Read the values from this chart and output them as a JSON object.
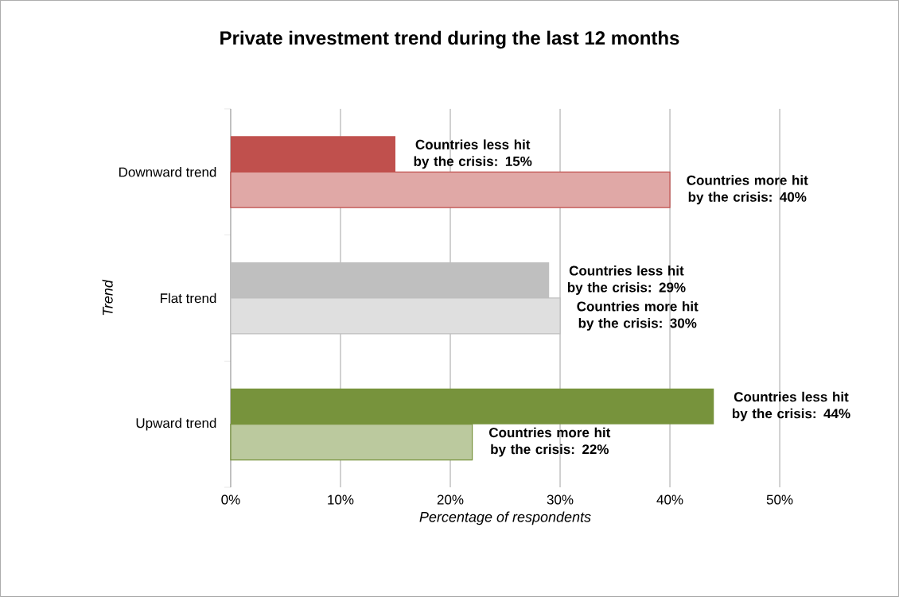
{
  "chart_data": {
    "type": "bar",
    "orientation": "horizontal",
    "title": "Private investment trend during the last 12 months",
    "xlabel": "Percentage of respondents",
    "ylabel": "Trend",
    "categories": [
      "Downward trend",
      "Flat trend",
      "Upward trend"
    ],
    "series": [
      {
        "colors": [
          "#c0504d",
          "#bfbfbf",
          "#77933c"
        ],
        "values": [
          15,
          29,
          44
        ],
        "value_labels": [
          "Countries less hit by the crisis: 15%",
          "Countries less hit by the crisis: 29%",
          "Countries less hit by the crisis: 44%"
        ]
      },
      {
        "colors": [
          "#c0504d",
          "#bfbfbf",
          "#77933c"
        ],
        "values": [
          40,
          30,
          22
        ],
        "value_labels": [
          "Countries more hit by the crisis: 40%",
          "Countries more hit by the crisis: 30%",
          "Countries more hit by the crisis: 22%"
        ]
      }
    ],
    "xlim": [
      0,
      50
    ],
    "xticks": [
      {
        "value": 0,
        "label": "0%"
      },
      {
        "value": 10,
        "label": "10%"
      },
      {
        "value": 20,
        "label": "20%"
      },
      {
        "value": 30,
        "label": "30%"
      },
      {
        "value": 40,
        "label": "40%"
      },
      {
        "value": 50,
        "label": "50%"
      }
    ],
    "grid": "x"
  }
}
